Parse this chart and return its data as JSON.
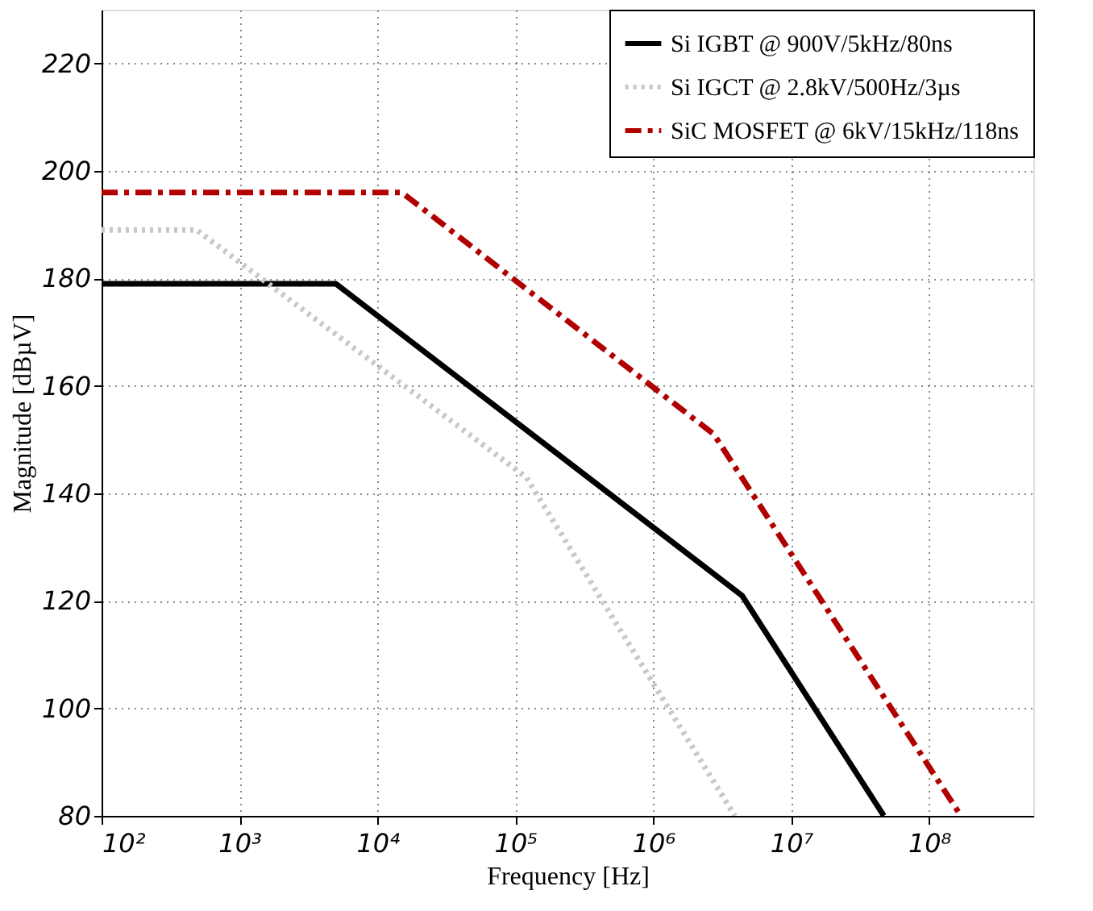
{
  "chart_data": {
    "type": "line",
    "xlabel": "Frequency [Hz]",
    "ylabel": "Magnitude [dBµV]",
    "log": "x",
    "xlim": [
      100,
      570000000
    ],
    "ylim": [
      80,
      230
    ],
    "xticks": [
      {
        "value": 100,
        "label": "10²"
      },
      {
        "value": 1000,
        "label": "10³"
      },
      {
        "value": 10000,
        "label": "10⁴"
      },
      {
        "value": 100000,
        "label": "10⁵"
      },
      {
        "value": 1000000,
        "label": "10⁶"
      },
      {
        "value": 10000000,
        "label": "10⁷"
      },
      {
        "value": 100000000,
        "label": "10⁸"
      }
    ],
    "yticks": [
      80,
      100,
      120,
      140,
      160,
      180,
      200,
      220
    ],
    "grid": true,
    "legend": "top right",
    "marker": "none",
    "series": [
      {
        "name": "Si IGBT @ 900V/5kHz/80ns",
        "color": "#000000",
        "line_style": "solid",
        "x": [
          100,
          5000,
          4400000,
          47000000
        ],
        "values": [
          179,
          179,
          121,
          80
        ]
      },
      {
        "name": "Si IGCT @ 2.8kV/500Hz/3µs",
        "color": "#c8c8c8",
        "line_style": "dotted",
        "x": [
          100,
          490,
          120000,
          3900000
        ],
        "values": [
          189,
          189,
          143,
          80
        ]
      },
      {
        "name": "SiC MOSFET @ 6kV/15kHz/118ns",
        "color": "#b00000",
        "line_style": "dashed",
        "x": [
          100,
          15000,
          2750000,
          170000000
        ],
        "values": [
          196,
          196,
          151,
          80
        ]
      }
    ]
  }
}
